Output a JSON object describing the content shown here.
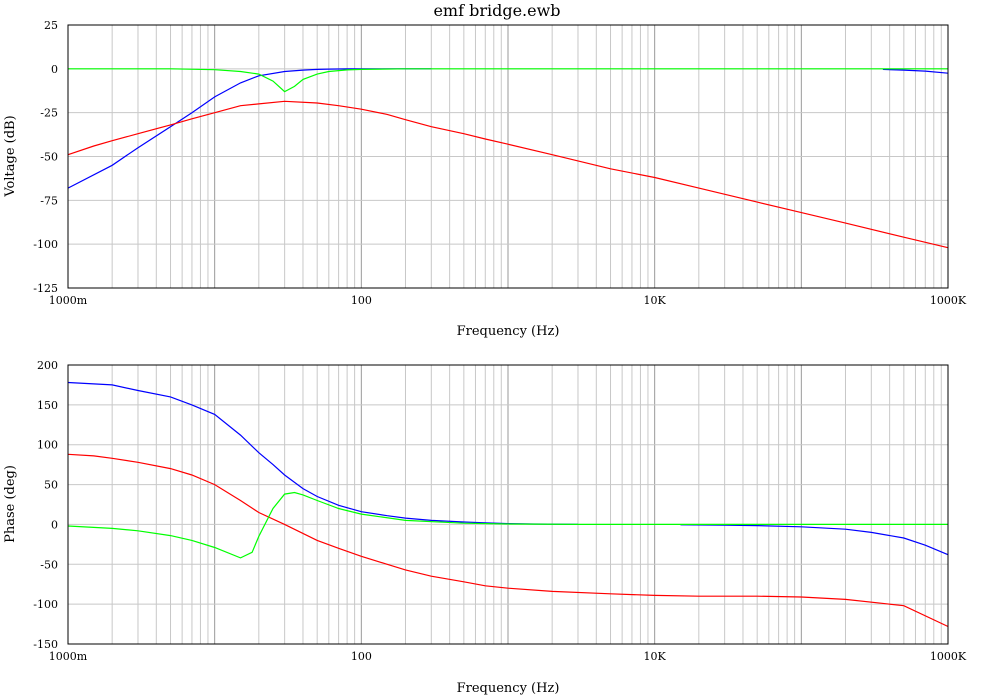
{
  "window": {
    "title": "emf bridge.ewb"
  },
  "chart_data": [
    {
      "type": "line",
      "xscale": "log",
      "xlabel": "Frequency (Hz)",
      "ylabel": "Voltage (dB)",
      "xlim": [
        1,
        1000000
      ],
      "ylim": [
        -125,
        25
      ],
      "xticks": [
        {
          "value": 1,
          "label": "1000m"
        },
        {
          "value": 100,
          "label": "100"
        },
        {
          "value": 10000,
          "label": "10K"
        },
        {
          "value": 1000000,
          "label": "1000K"
        }
      ],
      "yticks": [
        25,
        0,
        -25,
        -50,
        -75,
        -100,
        -125
      ],
      "grid": true,
      "series": [
        {
          "color": "#0000ff",
          "segments": [
            {
              "x": [
                1,
                2,
                3,
                5,
                7,
                10,
                15,
                20,
                30,
                40,
                50,
                60,
                70,
                80,
                100,
                150,
                200,
                300
              ],
              "y": [
                -68,
                -55,
                -45,
                -33,
                -25,
                -16,
                -8,
                -4,
                -1.5,
                -0.7,
                -0.3,
                -0.15,
                -0.1,
                -0.05,
                -0.02,
                0,
                0,
                0
              ]
            },
            {
              "x": [
                360000,
                500000,
                700000,
                1000000
              ],
              "y": [
                -0.3,
                -0.7,
                -1.3,
                -2.5
              ]
            }
          ]
        },
        {
          "color": "#ff0000",
          "segments": [
            {
              "x": [
                1,
                1.5,
                2,
                3,
                5,
                7,
                10,
                15,
                20,
                30,
                50,
                70,
                100,
                150,
                200,
                300,
                500,
                700,
                1000,
                2000,
                5000,
                10000,
                20000,
                50000,
                100000,
                200000,
                500000,
                1000000
              ],
              "y": [
                -49,
                -44,
                -41,
                -37,
                -32,
                -28.5,
                -25,
                -21,
                -20,
                -18.5,
                -19.5,
                -21,
                -23,
                -26,
                -29,
                -33,
                -37,
                -40,
                -43,
                -49,
                -57,
                -62,
                -68,
                -76,
                -82,
                -88,
                -96,
                -102
              ]
            }
          ]
        },
        {
          "color": "#00ff00",
          "segments": [
            {
              "x": [
                1,
                5,
                10,
                15,
                20,
                25,
                30,
                35,
                40,
                50,
                60,
                80,
                100,
                200,
                1000,
                1000000
              ],
              "y": [
                0,
                0,
                -0.5,
                -1.5,
                -3,
                -7,
                -13,
                -10,
                -6,
                -3,
                -1.5,
                -0.6,
                -0.3,
                0,
                0,
                0
              ]
            }
          ]
        }
      ]
    },
    {
      "type": "line",
      "xscale": "log",
      "xlabel": "Frequency (Hz)",
      "ylabel": "Phase (deg)",
      "xlim": [
        1,
        1000000
      ],
      "ylim": [
        -150,
        200
      ],
      "xticks": [
        {
          "value": 1,
          "label": "1000m"
        },
        {
          "value": 100,
          "label": "100"
        },
        {
          "value": 10000,
          "label": "10K"
        },
        {
          "value": 1000000,
          "label": "1000K"
        }
      ],
      "yticks": [
        200,
        150,
        100,
        50,
        0,
        -50,
        -100,
        -150
      ],
      "grid": true,
      "series": [
        {
          "color": "#0000ff",
          "segments": [
            {
              "x": [
                1,
                2,
                3,
                5,
                7,
                10,
                15,
                20,
                25,
                30,
                40,
                50,
                70,
                100,
                150,
                200,
                300,
                500,
                700,
                1000,
                1500,
                3000
              ],
              "y": [
                178,
                175,
                168,
                160,
                150,
                138,
                112,
                90,
                75,
                62,
                45,
                35,
                24,
                16,
                11,
                8,
                5,
                3,
                2,
                1,
                0.5,
                0
              ]
            },
            {
              "x": [
                15000,
                30000,
                50000,
                100000,
                200000,
                300000,
                500000,
                700000,
                1000000
              ],
              "y": [
                -0.5,
                -1,
                -1.5,
                -3,
                -6,
                -10,
                -17,
                -26,
                -38
              ]
            }
          ]
        },
        {
          "color": "#ff0000",
          "segments": [
            {
              "x": [
                1,
                1.5,
                2,
                3,
                5,
                7,
                10,
                15,
                20,
                30,
                50,
                70,
                100,
                150,
                200,
                300,
                500,
                700,
                1000,
                2000,
                5000,
                10000,
                20000,
                50000,
                100000,
                200000,
                500000,
                1000000
              ],
              "y": [
                88,
                86,
                83,
                78,
                70,
                62,
                50,
                30,
                15,
                0,
                -20,
                -30,
                -40,
                -50,
                -57,
                -65,
                -72,
                -77,
                -80,
                -84,
                -87,
                -89,
                -90,
                -90,
                -91,
                -94,
                -102,
                -128
              ]
            }
          ]
        },
        {
          "color": "#00ff00",
          "segments": [
            {
              "x": [
                1,
                2,
                3,
                5,
                7,
                10,
                15,
                18,
                20,
                25,
                30,
                35,
                40,
                50,
                70,
                100,
                200,
                500,
                1000,
                3000,
                1000000
              ],
              "y": [
                -2,
                -5,
                -8,
                -14,
                -20,
                -29,
                -42,
                -35,
                -15,
                20,
                38,
                40,
                37,
                30,
                20,
                13,
                5,
                1.5,
                0.5,
                0,
                0
              ]
            }
          ]
        }
      ]
    }
  ]
}
